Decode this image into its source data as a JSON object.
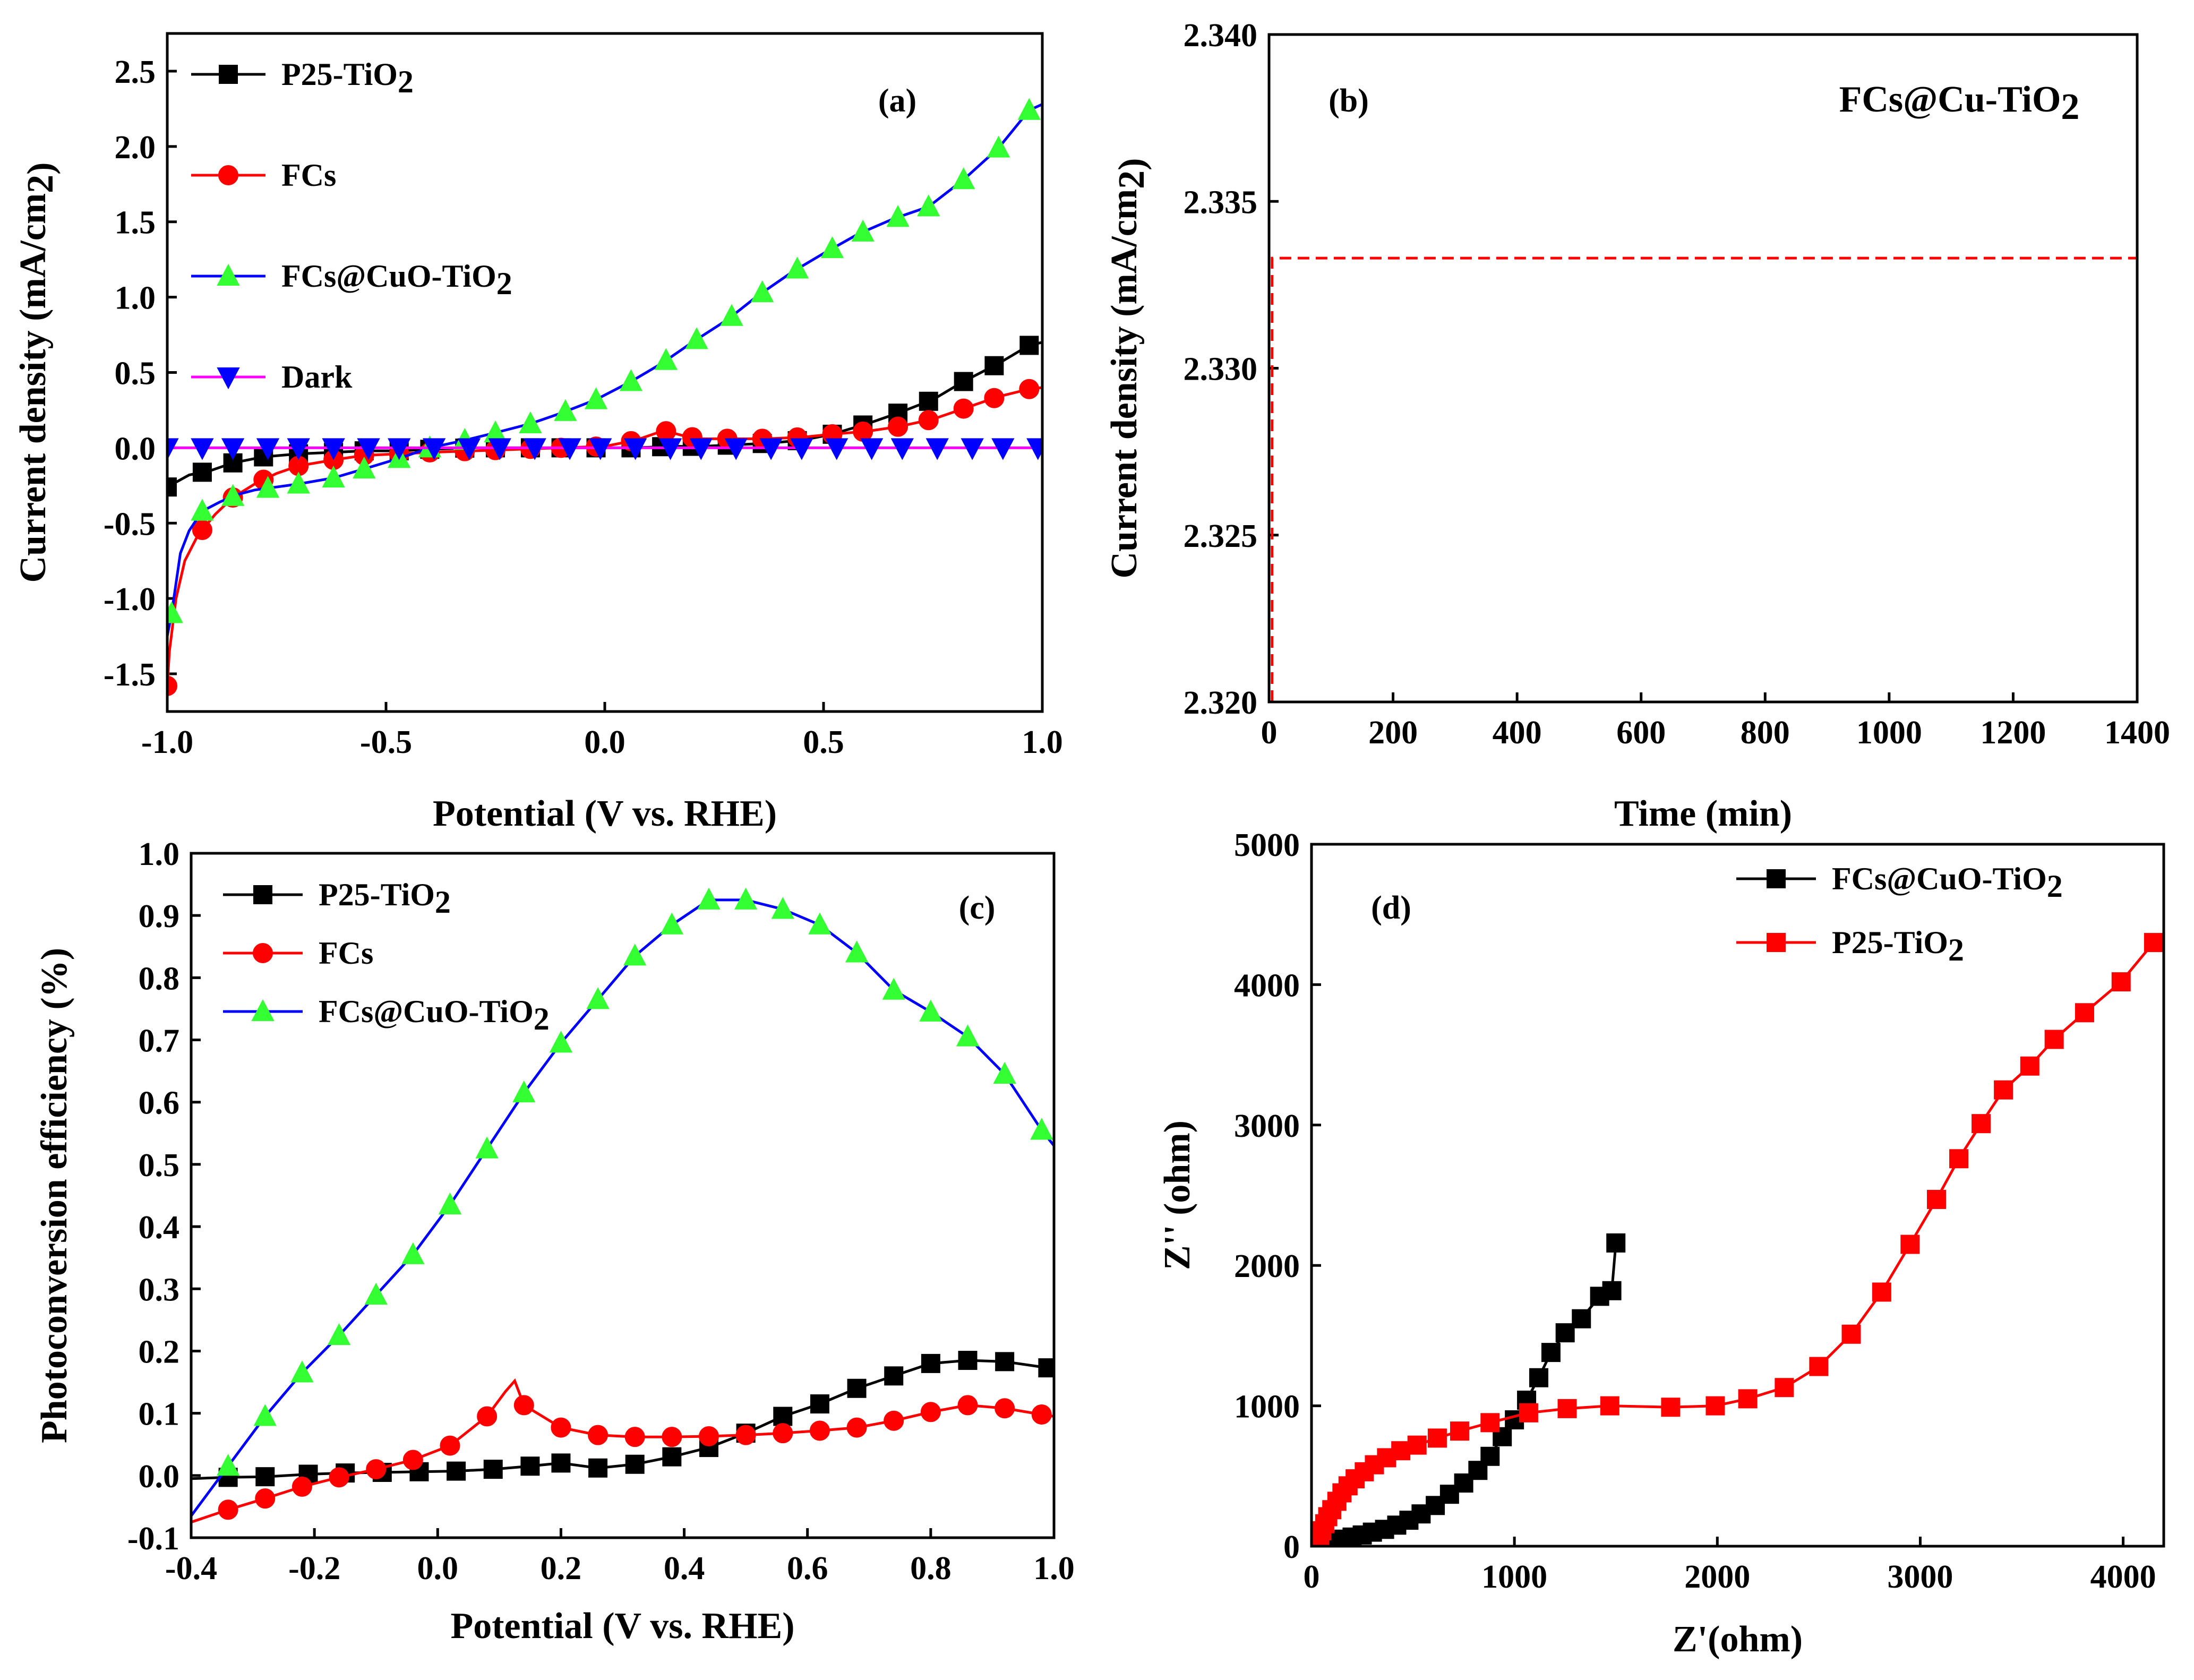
{
  "colors": {
    "black": "#000000",
    "red": "#ff0000",
    "blue": "#0000ff",
    "green": "#33ff33",
    "magenta": "#ff00ff"
  },
  "chart_data": [
    {
      "id": "a",
      "type": "line",
      "panel_label": "(a)",
      "title": "",
      "xlabel": "Potential (V vs. RHE)",
      "ylabel": "Current density (mA/cm2)",
      "xlim": [
        -1.0,
        1.0
      ],
      "ylim": [
        -1.75,
        2.75
      ],
      "xticks": [
        -1.0,
        -0.5,
        0.0,
        0.5,
        1.0
      ],
      "xtick_labels": [
        "-1.0",
        "-0.5",
        "0.0",
        "0.5",
        "1.0"
      ],
      "yticks": [
        -1.5,
        -1.0,
        -0.5,
        0.0,
        0.5,
        1.0,
        1.5,
        2.0,
        2.5
      ],
      "ytick_labels": [
        "-1.5",
        "-1.0",
        "-0.5",
        "0.0",
        "0.5",
        "1.0",
        "1.5",
        "2.0",
        "2.5"
      ],
      "legend_position": "top-left",
      "series": [
        {
          "name": "P25-TiO2",
          "color": "black",
          "marker": "square",
          "x": [
            -1.0,
            -0.95,
            -0.9,
            -0.85,
            -0.78,
            -0.7,
            -0.62,
            -0.55,
            -0.47,
            -0.4,
            -0.3,
            -0.2,
            -0.1,
            0.0,
            0.07,
            0.15,
            0.22,
            0.3,
            0.37,
            0.45,
            0.52,
            0.6,
            0.67,
            0.75,
            0.82,
            0.9,
            0.97,
            1.0
          ],
          "y": [
            -0.26,
            -0.18,
            -0.15,
            -0.1,
            -0.06,
            -0.04,
            -0.03,
            -0.02,
            -0.02,
            -0.01,
            0.0,
            0.0,
            0.0,
            0.0,
            0.0,
            0.01,
            0.01,
            0.02,
            0.03,
            0.05,
            0.09,
            0.16,
            0.23,
            0.32,
            0.44,
            0.56,
            0.68,
            0.7
          ],
          "marker_x": [
            -1.0,
            -0.92,
            -0.85,
            -0.78,
            -0.7,
            -0.62,
            -0.55,
            -0.47,
            -0.4,
            -0.32,
            -0.25,
            -0.17,
            -0.1,
            -0.02,
            0.06,
            0.13,
            0.2,
            0.28,
            0.36,
            0.44,
            0.52,
            0.59,
            0.67,
            0.74,
            0.82,
            0.89,
            0.97
          ]
        },
        {
          "name": "FCs",
          "color": "red",
          "marker": "circle",
          "x": [
            -1.0,
            -0.995,
            -0.98,
            -0.96,
            -0.93,
            -0.89,
            -0.85,
            -0.8,
            -0.75,
            -0.7,
            -0.62,
            -0.55,
            -0.47,
            -0.4,
            -0.3,
            -0.2,
            -0.1,
            0.0,
            0.07,
            0.12,
            0.14,
            0.18,
            0.22,
            0.3,
            0.37,
            0.45,
            0.52,
            0.6,
            0.67,
            0.75,
            0.82,
            0.9,
            0.97,
            1.0
          ],
          "y": [
            -1.58,
            -1.35,
            -1.0,
            -0.75,
            -0.58,
            -0.44,
            -0.33,
            -0.24,
            -0.17,
            -0.12,
            -0.08,
            -0.05,
            -0.04,
            -0.03,
            -0.02,
            -0.01,
            0.0,
            0.01,
            0.05,
            0.1,
            0.11,
            0.08,
            0.06,
            0.06,
            0.06,
            0.07,
            0.09,
            0.11,
            0.14,
            0.19,
            0.26,
            0.34,
            0.39,
            0.4
          ],
          "marker_x": [
            -1.0,
            -0.92,
            -0.85,
            -0.78,
            -0.7,
            -0.62,
            -0.55,
            -0.47,
            -0.4,
            -0.32,
            -0.25,
            -0.17,
            -0.1,
            -0.02,
            0.06,
            0.14,
            0.2,
            0.28,
            0.36,
            0.44,
            0.52,
            0.59,
            0.67,
            0.74,
            0.82,
            0.89,
            0.97
          ]
        },
        {
          "name": "FCs@CuO-TiO2",
          "color": "blue",
          "marker": "triangle-up",
          "marker_color": "green",
          "x": [
            -1.0,
            -0.99,
            -0.97,
            -0.95,
            -0.92,
            -0.88,
            -0.84,
            -0.8,
            -0.75,
            -0.7,
            -0.62,
            -0.55,
            -0.47,
            -0.4,
            -0.32,
            -0.25,
            -0.17,
            -0.1,
            -0.02,
            0.06,
            0.13,
            0.2,
            0.28,
            0.35,
            0.43,
            0.5,
            0.58,
            0.66,
            0.74,
            0.82,
            0.9,
            0.97,
            1.0
          ],
          "y": [
            -1.25,
            -1.1,
            -0.7,
            -0.55,
            -0.42,
            -0.36,
            -0.31,
            -0.28,
            -0.26,
            -0.24,
            -0.2,
            -0.14,
            -0.07,
            0.0,
            0.05,
            0.1,
            0.16,
            0.23,
            0.32,
            0.44,
            0.56,
            0.7,
            0.85,
            1.01,
            1.17,
            1.29,
            1.42,
            1.52,
            1.6,
            1.78,
            1.99,
            2.24,
            2.28
          ],
          "marker_x": [
            -0.99,
            -0.92,
            -0.85,
            -0.77,
            -0.7,
            -0.62,
            -0.55,
            -0.47,
            -0.4,
            -0.32,
            -0.25,
            -0.17,
            -0.09,
            -0.02,
            0.06,
            0.14,
            0.21,
            0.29,
            0.36,
            0.44,
            0.52,
            0.59,
            0.67,
            0.74,
            0.82,
            0.9,
            0.97
          ]
        },
        {
          "name": "Dark",
          "color": "magenta",
          "marker": "triangle-down",
          "marker_color": "blue",
          "x": [
            -1.0,
            1.0
          ],
          "y": [
            0.0,
            0.0
          ],
          "marker_x": [
            -1.0,
            -0.92,
            -0.85,
            -0.77,
            -0.7,
            -0.62,
            -0.54,
            -0.47,
            -0.39,
            -0.31,
            -0.24,
            -0.16,
            -0.08,
            -0.01,
            0.07,
            0.15,
            0.22,
            0.3,
            0.38,
            0.45,
            0.53,
            0.61,
            0.68,
            0.76,
            0.84,
            0.91,
            0.99
          ]
        }
      ]
    },
    {
      "id": "b",
      "type": "line",
      "panel_label": "(b)",
      "title": "FCs@Cu-TiO2",
      "xlabel": "Time (min)",
      "ylabel": "Current density (mA/cm2)",
      "xlim": [
        0,
        1400
      ],
      "ylim": [
        2.32,
        2.34
      ],
      "xticks": [
        0,
        200,
        400,
        600,
        800,
        1000,
        1200,
        1400
      ],
      "xtick_labels": [
        "0",
        "200",
        "400",
        "600",
        "800",
        "1000",
        "1200",
        "1400"
      ],
      "yticks": [
        2.32,
        2.325,
        2.33,
        2.335,
        2.34
      ],
      "ytick_labels": [
        "2.320",
        "2.325",
        "2.330",
        "2.335",
        "2.340"
      ],
      "series": [
        {
          "name": "FCs@Cu-TiO2",
          "color": "red",
          "marker": "none",
          "dash": true,
          "x": [
            5,
            5,
            10,
            200,
            400,
            600,
            800,
            1000,
            1200,
            1400
          ],
          "y": [
            2.32,
            2.3333,
            2.3333,
            2.3333,
            2.3333,
            2.3333,
            2.3333,
            2.3333,
            2.3333,
            2.3333
          ]
        }
      ]
    },
    {
      "id": "c",
      "type": "line",
      "panel_label": "(c)",
      "title": "",
      "xlabel": "Potential (V vs. RHE)",
      "ylabel": "Photoconversion efficiency (%)",
      "xlim": [
        -0.4,
        1.0
      ],
      "ylim": [
        -0.1,
        1.0
      ],
      "xticks": [
        -0.4,
        -0.2,
        0.0,
        0.2,
        0.4,
        0.6,
        0.8,
        1.0
      ],
      "xtick_labels": [
        "-0.4",
        "-0.2",
        "0.0",
        "0.2",
        "0.4",
        "0.6",
        "0.8",
        "1.0"
      ],
      "yticks": [
        -0.1,
        0.0,
        0.1,
        0.2,
        0.3,
        0.4,
        0.5,
        0.6,
        0.7,
        0.8,
        0.9,
        1.0
      ],
      "ytick_labels": [
        "-0.1",
        "0.0",
        "0.1",
        "0.2",
        "0.3",
        "0.4",
        "0.5",
        "0.6",
        "0.7",
        "0.8",
        "0.9",
        "1.0"
      ],
      "legend_position": "top-left",
      "series": [
        {
          "name": "P25-TiO2",
          "color": "black",
          "marker": "square",
          "x": [
            -0.4,
            -0.34,
            -0.28,
            -0.21,
            -0.15,
            -0.09,
            -0.03,
            0.03,
            0.09,
            0.15,
            0.2,
            0.26,
            0.32,
            0.38,
            0.44,
            0.5,
            0.56,
            0.62,
            0.68,
            0.74,
            0.8,
            0.86,
            0.92,
            0.99,
            1.0
          ],
          "y": [
            -0.005,
            -0.003,
            -0.002,
            0.002,
            0.004,
            0.005,
            0.006,
            0.007,
            0.01,
            0.015,
            0.02,
            0.012,
            0.018,
            0.03,
            0.045,
            0.068,
            0.095,
            0.115,
            0.14,
            0.16,
            0.18,
            0.185,
            0.183,
            0.173,
            0.17
          ],
          "marker_x": [
            -0.34,
            -0.28,
            -0.21,
            -0.15,
            -0.09,
            -0.03,
            0.03,
            0.09,
            0.15,
            0.2,
            0.26,
            0.32,
            0.38,
            0.44,
            0.5,
            0.56,
            0.62,
            0.68,
            0.74,
            0.8,
            0.86,
            0.92,
            0.99
          ]
        },
        {
          "name": "FCs",
          "color": "red",
          "marker": "circle",
          "x": [
            -0.4,
            -0.34,
            -0.28,
            -0.22,
            -0.16,
            -0.1,
            -0.04,
            0.02,
            0.08,
            0.11,
            0.125,
            0.14,
            0.2,
            0.26,
            0.32,
            0.38,
            0.44,
            0.5,
            0.56,
            0.62,
            0.68,
            0.74,
            0.8,
            0.86,
            0.92,
            0.98,
            1.0
          ],
          "y": [
            -0.075,
            -0.055,
            -0.037,
            -0.018,
            -0.003,
            0.01,
            0.025,
            0.048,
            0.095,
            0.135,
            0.152,
            0.113,
            0.077,
            0.065,
            0.062,
            0.062,
            0.063,
            0.065,
            0.068,
            0.072,
            0.077,
            0.088,
            0.102,
            0.113,
            0.108,
            0.098,
            0.095
          ],
          "marker_x": [
            -0.34,
            -0.28,
            -0.22,
            -0.16,
            -0.1,
            -0.04,
            0.02,
            0.08,
            0.14,
            0.2,
            0.26,
            0.32,
            0.38,
            0.44,
            0.5,
            0.56,
            0.62,
            0.68,
            0.74,
            0.8,
            0.86,
            0.92,
            0.98
          ]
        },
        {
          "name": "FCs@CuO-TiO2",
          "color": "blue",
          "marker": "triangle-up",
          "marker_color": "green",
          "x": [
            -0.4,
            -0.34,
            -0.28,
            -0.22,
            -0.16,
            -0.1,
            -0.04,
            0.02,
            0.08,
            0.14,
            0.2,
            0.26,
            0.32,
            0.38,
            0.44,
            0.5,
            0.56,
            0.62,
            0.68,
            0.74,
            0.8,
            0.86,
            0.92,
            0.98,
            1.0
          ],
          "y": [
            -0.065,
            0.015,
            0.095,
            0.165,
            0.225,
            0.29,
            0.355,
            0.435,
            0.525,
            0.615,
            0.695,
            0.765,
            0.835,
            0.885,
            0.925,
            0.925,
            0.91,
            0.885,
            0.84,
            0.78,
            0.745,
            0.705,
            0.645,
            0.555,
            0.53
          ],
          "marker_x": [
            -0.34,
            -0.28,
            -0.22,
            -0.16,
            -0.1,
            -0.04,
            0.02,
            0.08,
            0.14,
            0.2,
            0.26,
            0.32,
            0.38,
            0.44,
            0.5,
            0.56,
            0.62,
            0.68,
            0.74,
            0.8,
            0.86,
            0.92,
            0.98
          ]
        }
      ]
    },
    {
      "id": "d",
      "type": "line",
      "panel_label": "(d)",
      "title": "",
      "xlabel": "Z'(ohm)",
      "ylabel": "Z'' (ohm)",
      "xlim": [
        0,
        4200
      ],
      "ylim": [
        0,
        5000
      ],
      "xticks": [
        0,
        1000,
        2000,
        3000,
        4000
      ],
      "xtick_labels": [
        "0",
        "1000",
        "2000",
        "3000",
        "4000"
      ],
      "yticks": [
        0,
        1000,
        2000,
        3000,
        4000,
        5000
      ],
      "ytick_labels": [
        "0",
        "1000",
        "2000",
        "3000",
        "4000",
        "5000"
      ],
      "legend_position": "top-right",
      "series": [
        {
          "name": "FCs@CuO-TiO2",
          "color": "black",
          "marker": "square",
          "x": [
            60,
            90,
            120,
            160,
            200,
            250,
            300,
            360,
            420,
            480,
            540,
            610,
            680,
            750,
            820,
            880,
            940,
            1000,
            1060,
            1120,
            1180,
            1250,
            1330,
            1420,
            1480,
            1500
          ],
          "y": [
            0,
            20,
            35,
            50,
            65,
            80,
            100,
            120,
            150,
            185,
            230,
            290,
            370,
            450,
            540,
            640,
            780,
            900,
            1040,
            1200,
            1380,
            1520,
            1620,
            1780,
            1820,
            2160
          ]
        },
        {
          "name": "P25-TiO2",
          "color": "red",
          "marker": "square",
          "x": [
            30,
            40,
            50,
            65,
            80,
            100,
            125,
            150,
            180,
            215,
            260,
            310,
            370,
            440,
            520,
            620,
            730,
            880,
            1070,
            1260,
            1470,
            1770,
            1990,
            2150,
            2330,
            2500,
            2660,
            2810,
            2950,
            3080,
            3190,
            3300,
            3410,
            3540,
            3660,
            3810,
            3990,
            4150
          ],
          "y": [
            0,
            60,
            110,
            160,
            210,
            260,
            320,
            380,
            430,
            480,
            530,
            580,
            630,
            680,
            720,
            770,
            820,
            880,
            950,
            980,
            1000,
            990,
            1000,
            1050,
            1130,
            1280,
            1510,
            1810,
            2150,
            2470,
            2760,
            3010,
            3250,
            3420,
            3610,
            3800,
            4020,
            4300
          ]
        }
      ]
    }
  ]
}
